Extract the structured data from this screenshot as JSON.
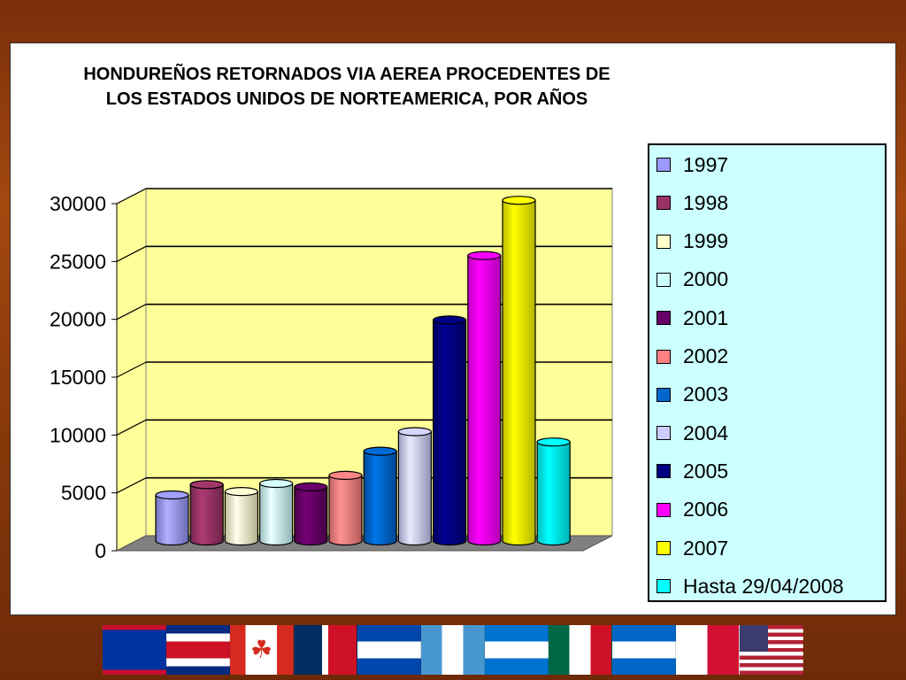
{
  "chart_data": {
    "type": "bar",
    "title": "HONDUREÑOS RETORNADOS VIA AEREA PROCEDENTES DE LOS ESTADOS UNIDOS DE NORTEAMERICA, POR AÑOS",
    "title_lines": [
      "HONDUREÑOS RETORNADOS VIA AEREA PROCEDENTES DE",
      "LOS ESTADOS UNIDOS DE NORTEAMERICA, POR AÑOS"
    ],
    "xlabel": "",
    "ylabel": "",
    "ylim": [
      0,
      30000
    ],
    "yticks": [
      "30000",
      "25000",
      "20000",
      "15000",
      "10000",
      "5000",
      "0"
    ],
    "grid": true,
    "legend_position": "right",
    "categories": [
      "1997",
      "1998",
      "1999",
      "2000",
      "2001",
      "2002",
      "2003",
      "2004",
      "2005",
      "2006",
      "2007",
      "Hasta 29/04/2008"
    ],
    "values": [
      4000,
      4900,
      4300,
      5000,
      4700,
      5700,
      7800,
      9500,
      19200,
      24800,
      29600,
      8600
    ],
    "colors": [
      "#9999ff",
      "#993366",
      "#ffffcc",
      "#ccffff",
      "#660066",
      "#ff8080",
      "#0066cc",
      "#ccccff",
      "#000080",
      "#ff00ff",
      "#ffff00",
      "#00ffff"
    ],
    "plot_background": "#ffff99",
    "legend_background": "#ccffff"
  },
  "flags": [
    {
      "name": "belize-flag"
    },
    {
      "name": "costa-rica-flag"
    },
    {
      "name": "canada-flag"
    },
    {
      "name": "dominican-republic-flag"
    },
    {
      "name": "el-salvador-flag"
    },
    {
      "name": "guatemala-flag"
    },
    {
      "name": "honduras-flag"
    },
    {
      "name": "mexico-flag"
    },
    {
      "name": "nicaragua-flag"
    },
    {
      "name": "panama-flag"
    },
    {
      "name": "usa-flag"
    }
  ]
}
